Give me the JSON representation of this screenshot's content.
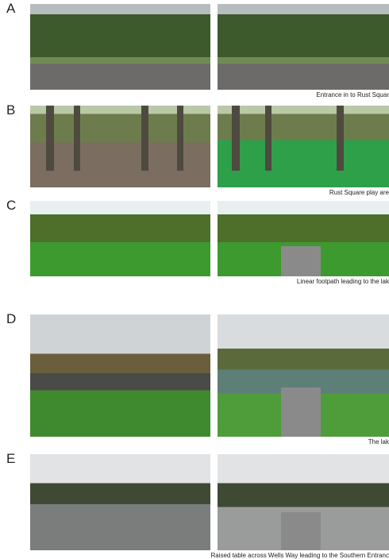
{
  "panels": [
    {
      "label": "A",
      "caption": "Entrance in to Rust Squar"
    },
    {
      "label": "B",
      "caption": "Rust Square play are"
    },
    {
      "label": "C",
      "caption": "Linear footpath leading to the lak"
    },
    {
      "label": "D",
      "caption": "The lak"
    },
    {
      "label": "E",
      "caption": "Raised table across Wells Way leading to the Southern Entranc"
    }
  ]
}
